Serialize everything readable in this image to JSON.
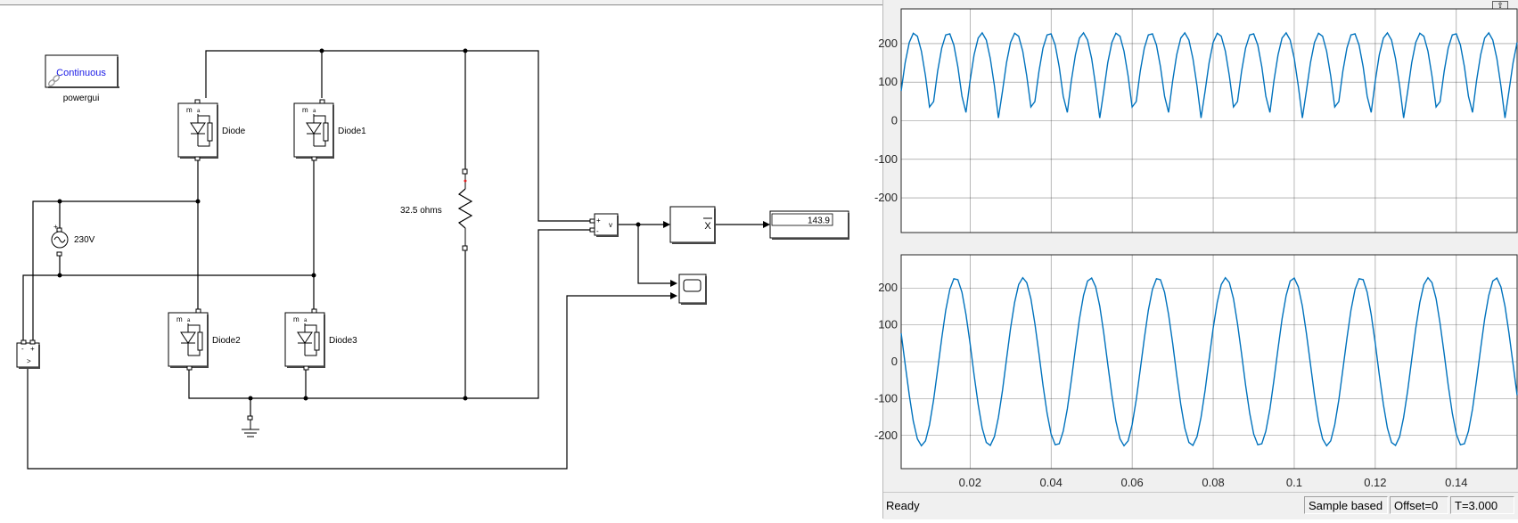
{
  "model": {
    "powergui": {
      "mode": "Continuous",
      "name": "powergui"
    },
    "source": {
      "label": "230V"
    },
    "diodes": [
      "Diode",
      "Diode1",
      "Diode2",
      "Diode3"
    ],
    "resistor": {
      "label": "32.5 ohms"
    },
    "display": {
      "value": "143.9"
    },
    "glyphs": {
      "m": "m",
      "plus": "+",
      "minus": "-",
      "v": "v",
      "diode_m": "m"
    }
  },
  "scope": {
    "status": {
      "ready": "Ready",
      "sample": "Sample based",
      "offset": "Offset=0",
      "time": "T=3.000"
    },
    "undock_icon": "undock-icon",
    "chart_data": [
      {
        "type": "line",
        "title": "",
        "xlabel": "",
        "ylabel": "",
        "xlim": [
          0.003,
          0.155
        ],
        "ylim": [
          -290,
          290
        ],
        "yticks": [
          200,
          100,
          0,
          -100,
          -200
        ],
        "grid": true,
        "color": "#0072bd",
        "series": [
          {
            "x_step": 0.001,
            "x_start": 0.003,
            "waveform": "abs(325*sin(2*pi*60*(t+0.00625)))*0.7",
            "peak": 228
          }
        ]
      },
      {
        "type": "line",
        "title": "",
        "xlabel": "",
        "ylabel": "",
        "xlim": [
          0.003,
          0.155
        ],
        "ylim": [
          -290,
          290
        ],
        "yticks": [
          200,
          100,
          0,
          -100,
          -200
        ],
        "xticks": [
          "0.02",
          "0.04",
          "0.06",
          "0.08",
          "0.1",
          "0.12",
          "0.14"
        ],
        "grid": true,
        "color": "#0072bd",
        "series": [
          {
            "x_step": 0.001,
            "x_start": 0.003,
            "waveform": "228*cos(2*pi*60*t)",
            "peak": 228
          }
        ]
      }
    ]
  }
}
